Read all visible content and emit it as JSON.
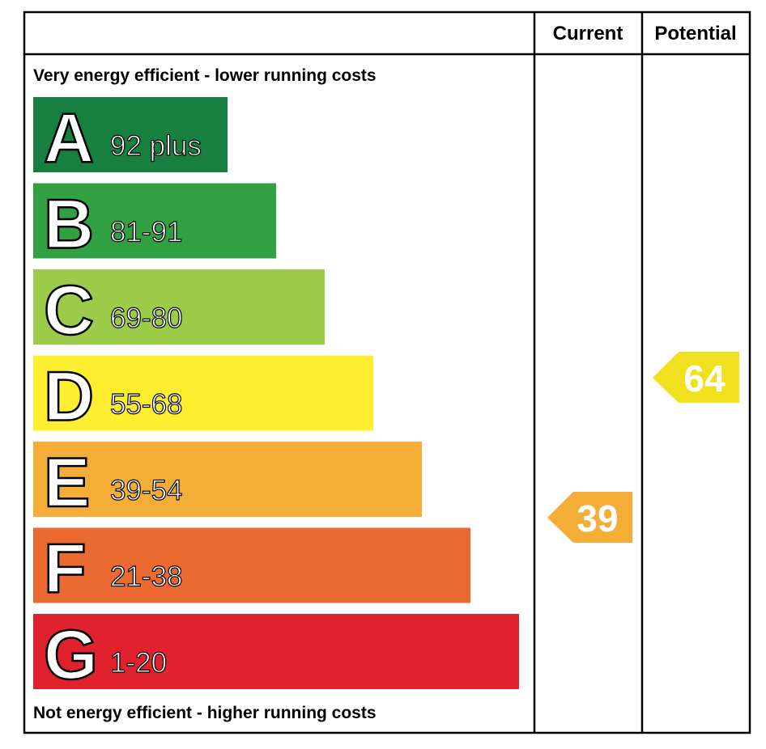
{
  "header": {
    "columns": [
      "Current",
      "Potential"
    ]
  },
  "top_label": "Very energy efficient - lower running costs",
  "bottom_label": "Not energy efficient - higher running costs",
  "bands": [
    {
      "letter": "A",
      "range": "92 plus",
      "color": "#177f3f"
    },
    {
      "letter": "B",
      "range": "81-91",
      "color": "#30a043"
    },
    {
      "letter": "C",
      "range": "69-80",
      "color": "#9ccb4a"
    },
    {
      "letter": "D",
      "range": "55-68",
      "color": "#fdee30"
    },
    {
      "letter": "E",
      "range": "39-54",
      "color": "#f4ae37"
    },
    {
      "letter": "F",
      "range": "21-38",
      "color": "#ea6a31"
    },
    {
      "letter": "G",
      "range": "1-20",
      "color": "#e0212e"
    }
  ],
  "current": {
    "value": 39,
    "color": "#f4ae37"
  },
  "potential": {
    "value": 64,
    "color": "#f1e01e"
  }
}
